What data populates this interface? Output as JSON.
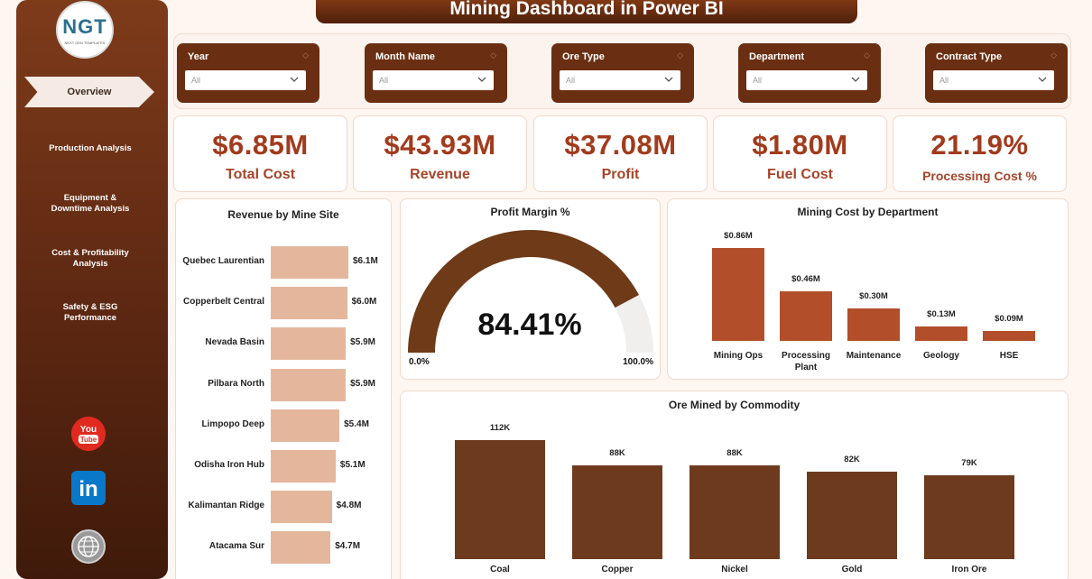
{
  "app": {
    "title": "Mining Dashboard in Power BI"
  },
  "logo": {
    "text": "NGT",
    "subtext": "NEXT GEN TEMPLATES"
  },
  "nav": {
    "active": "Overview",
    "items": [
      [
        "Production Analysis"
      ],
      [
        "Equipment &",
        "Downtime Analysis"
      ],
      [
        "Cost & Profitability",
        "Analysis"
      ],
      [
        "Safety & ESG",
        "Performance"
      ]
    ]
  },
  "social": {
    "youtube_label": "You",
    "youtube_sub": "Tube",
    "linkedin_label": "in"
  },
  "filters": [
    {
      "label": "Year",
      "value": "All"
    },
    {
      "label": "Month Name",
      "value": "All"
    },
    {
      "label": "Ore Type",
      "value": "All"
    },
    {
      "label": "Department",
      "value": "All"
    },
    {
      "label": "Contract Type",
      "value": "All"
    }
  ],
  "kpis": [
    {
      "value": "$6.85M",
      "label": "Total Cost"
    },
    {
      "value": "$43.93M",
      "label": "Revenue"
    },
    {
      "value": "$37.08M",
      "label": "Profit"
    },
    {
      "value": "$1.80M",
      "label": "Fuel Cost"
    },
    {
      "value": "21.19%",
      "label": "Processing Cost %"
    }
  ],
  "colors": {
    "brand": "#6a2f12",
    "accent": "#a23a1c",
    "bar_light": "#e4b79d",
    "bar_rust": "#b24f2a",
    "bar_dark": "#6e3a1e",
    "gauge_fill": "#6e3a17",
    "gauge_track": "#f0efee"
  },
  "chart_data": [
    {
      "type": "bar",
      "orientation": "horizontal",
      "title": "Revenue by Mine Site",
      "categories": [
        "Quebec Laurentian",
        "Copperbelt Central",
        "Nevada Basin",
        "Pilbara North",
        "Limpopo Deep",
        "Odisha Iron Hub",
        "Kalimantan Ridge",
        "Atacama Sur"
      ],
      "values": [
        6.1,
        6.0,
        5.9,
        5.9,
        5.4,
        5.1,
        4.8,
        4.7
      ],
      "data_labels": [
        "$6.1M",
        "$6.0M",
        "$5.9M",
        "$5.9M",
        "$5.4M",
        "$5.1M",
        "$4.8M",
        "$4.7M"
      ],
      "unit": "$M"
    },
    {
      "type": "gauge",
      "title": "Profit Margin %",
      "value": 84.41,
      "value_label": "84.41%",
      "min_label": "0.0%",
      "max_label": "100.0%",
      "range": [
        0,
        100
      ]
    },
    {
      "type": "bar",
      "title": "Mining Cost by Department",
      "categories": [
        [
          "Mining Ops"
        ],
        [
          "Processing",
          "Plant"
        ],
        [
          "Maintenance"
        ],
        [
          "Geology"
        ],
        [
          "HSE"
        ]
      ],
      "values": [
        0.86,
        0.46,
        0.3,
        0.13,
        0.09
      ],
      "data_labels": [
        "$0.86M",
        "$0.46M",
        "$0.30M",
        "$0.13M",
        "$0.09M"
      ],
      "unit": "$M"
    },
    {
      "type": "bar",
      "title": "Ore Mined by Commodity",
      "categories": [
        "Coal",
        "Copper",
        "Nickel",
        "Gold",
        "Iron Ore"
      ],
      "values": [
        112,
        88,
        88,
        82,
        79
      ],
      "data_labels": [
        "112K",
        "88K",
        "88K",
        "82K",
        "79K"
      ],
      "unit": "K"
    }
  ]
}
